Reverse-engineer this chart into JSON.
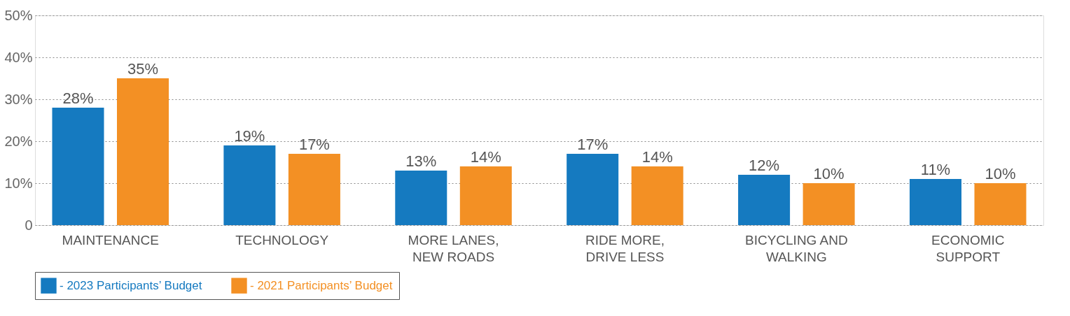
{
  "chart_data": {
    "type": "bar",
    "categories": [
      "MAINTENANCE",
      "TECHNOLOGY",
      "MORE LANES,\nNEW ROADS",
      "RIDE MORE,\nDRIVE LESS",
      "BICYCLING AND\nWALKING",
      "ECONOMIC\nSUPPORT"
    ],
    "series": [
      {
        "name": "- 2023 Participants’ Budget",
        "color": "#157ac0",
        "values": [
          28,
          19,
          13,
          17,
          12,
          11
        ],
        "value_labels": [
          "28%",
          "19%",
          "13%",
          "17%",
          "12%",
          "11%"
        ]
      },
      {
        "name": "- 2021 Participants’ Budget",
        "color": "#f39024",
        "values": [
          35,
          17,
          14,
          14,
          10,
          10
        ],
        "value_labels": [
          "35%",
          "17%",
          "14%",
          "14%",
          "10%",
          "10%"
        ]
      }
    ],
    "ylim": [
      0,
      50
    ],
    "yticks": [
      {
        "value": 0,
        "label": "0"
      },
      {
        "value": 10,
        "label": "10%"
      },
      {
        "value": 20,
        "label": "20%"
      },
      {
        "value": 30,
        "label": "30%"
      },
      {
        "value": 40,
        "label": "40%"
      },
      {
        "value": 50,
        "label": "50%"
      }
    ],
    "grid": "y",
    "legend": "bottom"
  }
}
